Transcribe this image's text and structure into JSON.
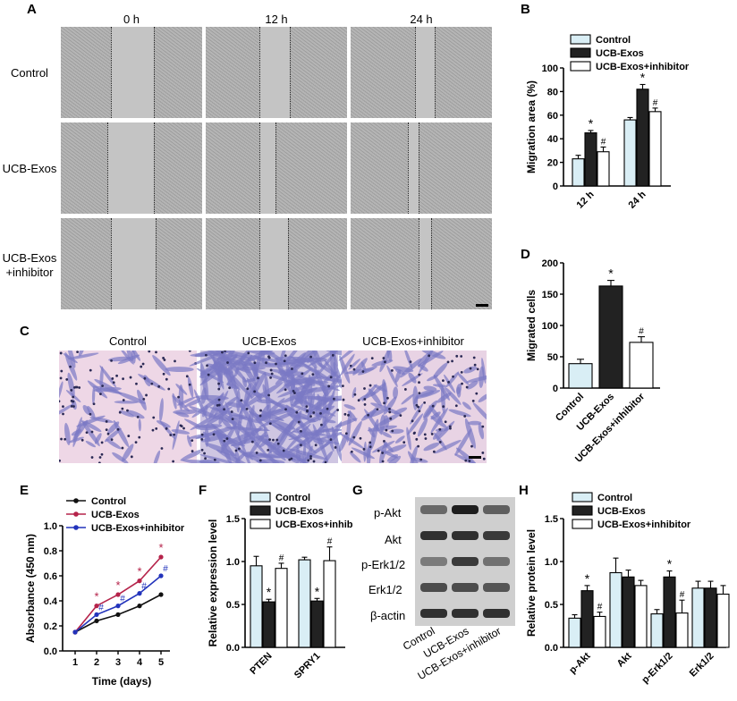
{
  "panels": {
    "A": "A",
    "B": "B",
    "C": "C",
    "D": "D",
    "E": "E",
    "F": "F",
    "G": "G",
    "H": "H"
  },
  "panelA": {
    "columns": [
      "0 h",
      "12 h",
      "24 h"
    ],
    "rows": [
      "Control",
      "UCB-Exos",
      "UCB-Exos\n+inhibitor"
    ]
  },
  "panelC": {
    "columns": [
      "Control",
      "UCB-Exos",
      "UCB-Exos+inhibitor"
    ]
  },
  "panelG": {
    "bands": [
      "p-Akt",
      "Akt",
      "p-Erk1/2",
      "Erk1/2",
      "β-actin"
    ],
    "lanes": [
      "Control",
      "UCB-Exos",
      "UCB-Exos+inhibitor"
    ]
  },
  "colors": {
    "control": "#d9eef5",
    "exos": "#222222",
    "inhib": "#ffffff",
    "lineControl": "#111111",
    "lineExos": "#b5234a",
    "lineInhib": "#2233bb"
  },
  "chart_data": [
    {
      "id": "B",
      "type": "bar",
      "ylabel": "Migration area (%)",
      "ylim": [
        0,
        100
      ],
      "yticks": [
        0,
        20,
        40,
        60,
        80,
        100
      ],
      "categories": [
        "12 h",
        "24 h"
      ],
      "legend": [
        "Control",
        "UCB-Exos",
        "UCB-Exos+inhibitor"
      ],
      "series": [
        {
          "name": "Control",
          "values": [
            23,
            56
          ],
          "err": [
            3,
            2
          ]
        },
        {
          "name": "UCB-Exos",
          "values": [
            45,
            82
          ],
          "err": [
            2,
            4
          ],
          "marks": [
            "*",
            "*"
          ]
        },
        {
          "name": "UCB-Exos+inhibitor",
          "values": [
            29,
            63
          ],
          "err": [
            4,
            3
          ],
          "marks": [
            "#",
            "#"
          ]
        }
      ]
    },
    {
      "id": "D",
      "type": "bar",
      "ylabel": "Migrated cells",
      "ylim": [
        0,
        200
      ],
      "yticks": [
        0,
        50,
        100,
        150,
        200
      ],
      "categories": [
        "Control",
        "UCB-Exos",
        "UCB-Exos+inhibitor"
      ],
      "values": [
        39,
        163,
        73
      ],
      "err": [
        7,
        9,
        9
      ],
      "marks": [
        "",
        "*",
        "#"
      ]
    },
    {
      "id": "E",
      "type": "line",
      "ylabel": "Absorbance (450 nm)",
      "xlabel": "Time (days)",
      "ylim": [
        0,
        1.0
      ],
      "yticks": [
        "0.0",
        "0.2",
        "0.4",
        "0.6",
        "0.8",
        "1.0"
      ],
      "x": [
        1,
        2,
        3,
        4,
        5
      ],
      "legend": [
        "Control",
        "UCB-Exos",
        "UCB-Exos+inhibitor"
      ],
      "series": [
        {
          "name": "Control",
          "values": [
            0.15,
            0.24,
            0.29,
            0.36,
            0.45
          ]
        },
        {
          "name": "UCB-Exos",
          "values": [
            0.15,
            0.36,
            0.45,
            0.56,
            0.75
          ],
          "marks": [
            "",
            "*",
            "*",
            "*",
            "*"
          ]
        },
        {
          "name": "UCB-Exos+inhibitor",
          "values": [
            0.15,
            0.29,
            0.36,
            0.46,
            0.6
          ],
          "marks": [
            "",
            "#",
            "#",
            "#",
            "#"
          ]
        }
      ]
    },
    {
      "id": "F",
      "type": "bar",
      "ylabel": "Relative expression level",
      "ylim": [
        0,
        1.5
      ],
      "yticks": [
        "0.0",
        "0.5",
        "1.0",
        "1.5"
      ],
      "categories": [
        "PTEN",
        "SPRY1"
      ],
      "legend": [
        "Control",
        "UCB-Exos",
        "UCB-Exos+inhibitor"
      ],
      "series": [
        {
          "name": "Control",
          "values": [
            0.95,
            1.02
          ],
          "err": [
            0.11,
            0.03
          ]
        },
        {
          "name": "UCB-Exos",
          "values": [
            0.53,
            0.54
          ],
          "err": [
            0.03,
            0.03
          ],
          "marks": [
            "*",
            "*"
          ]
        },
        {
          "name": "UCB-Exos+inhibitor",
          "values": [
            0.92,
            1.01
          ],
          "err": [
            0.06,
            0.16
          ],
          "marks": [
            "#",
            "#"
          ]
        }
      ]
    },
    {
      "id": "H",
      "type": "bar",
      "ylabel": "Relative protein level",
      "ylim": [
        0,
        1.5
      ],
      "yticks": [
        "0.0",
        "0.5",
        "1.0",
        "1.5"
      ],
      "categories": [
        "p-Akt",
        "Akt",
        "p-Erk1/2",
        "Erk1/2"
      ],
      "legend": [
        "Control",
        "UCB-Exos",
        "UCB-Exos+inhibitor"
      ],
      "series": [
        {
          "name": "Control",
          "values": [
            0.34,
            0.87,
            0.39,
            0.69
          ],
          "err": [
            0.04,
            0.17,
            0.05,
            0.08
          ]
        },
        {
          "name": "UCB-Exos",
          "values": [
            0.66,
            0.82,
            0.82,
            0.69
          ],
          "err": [
            0.06,
            0.08,
            0.07,
            0.08
          ],
          "marks": [
            "*",
            "",
            "*",
            ""
          ]
        },
        {
          "name": "UCB-Exos+inhibitor",
          "values": [
            0.36,
            0.72,
            0.4,
            0.62
          ],
          "err": [
            0.05,
            0.06,
            0.15,
            0.1
          ],
          "marks": [
            "#",
            "",
            "#",
            ""
          ]
        }
      ]
    }
  ]
}
